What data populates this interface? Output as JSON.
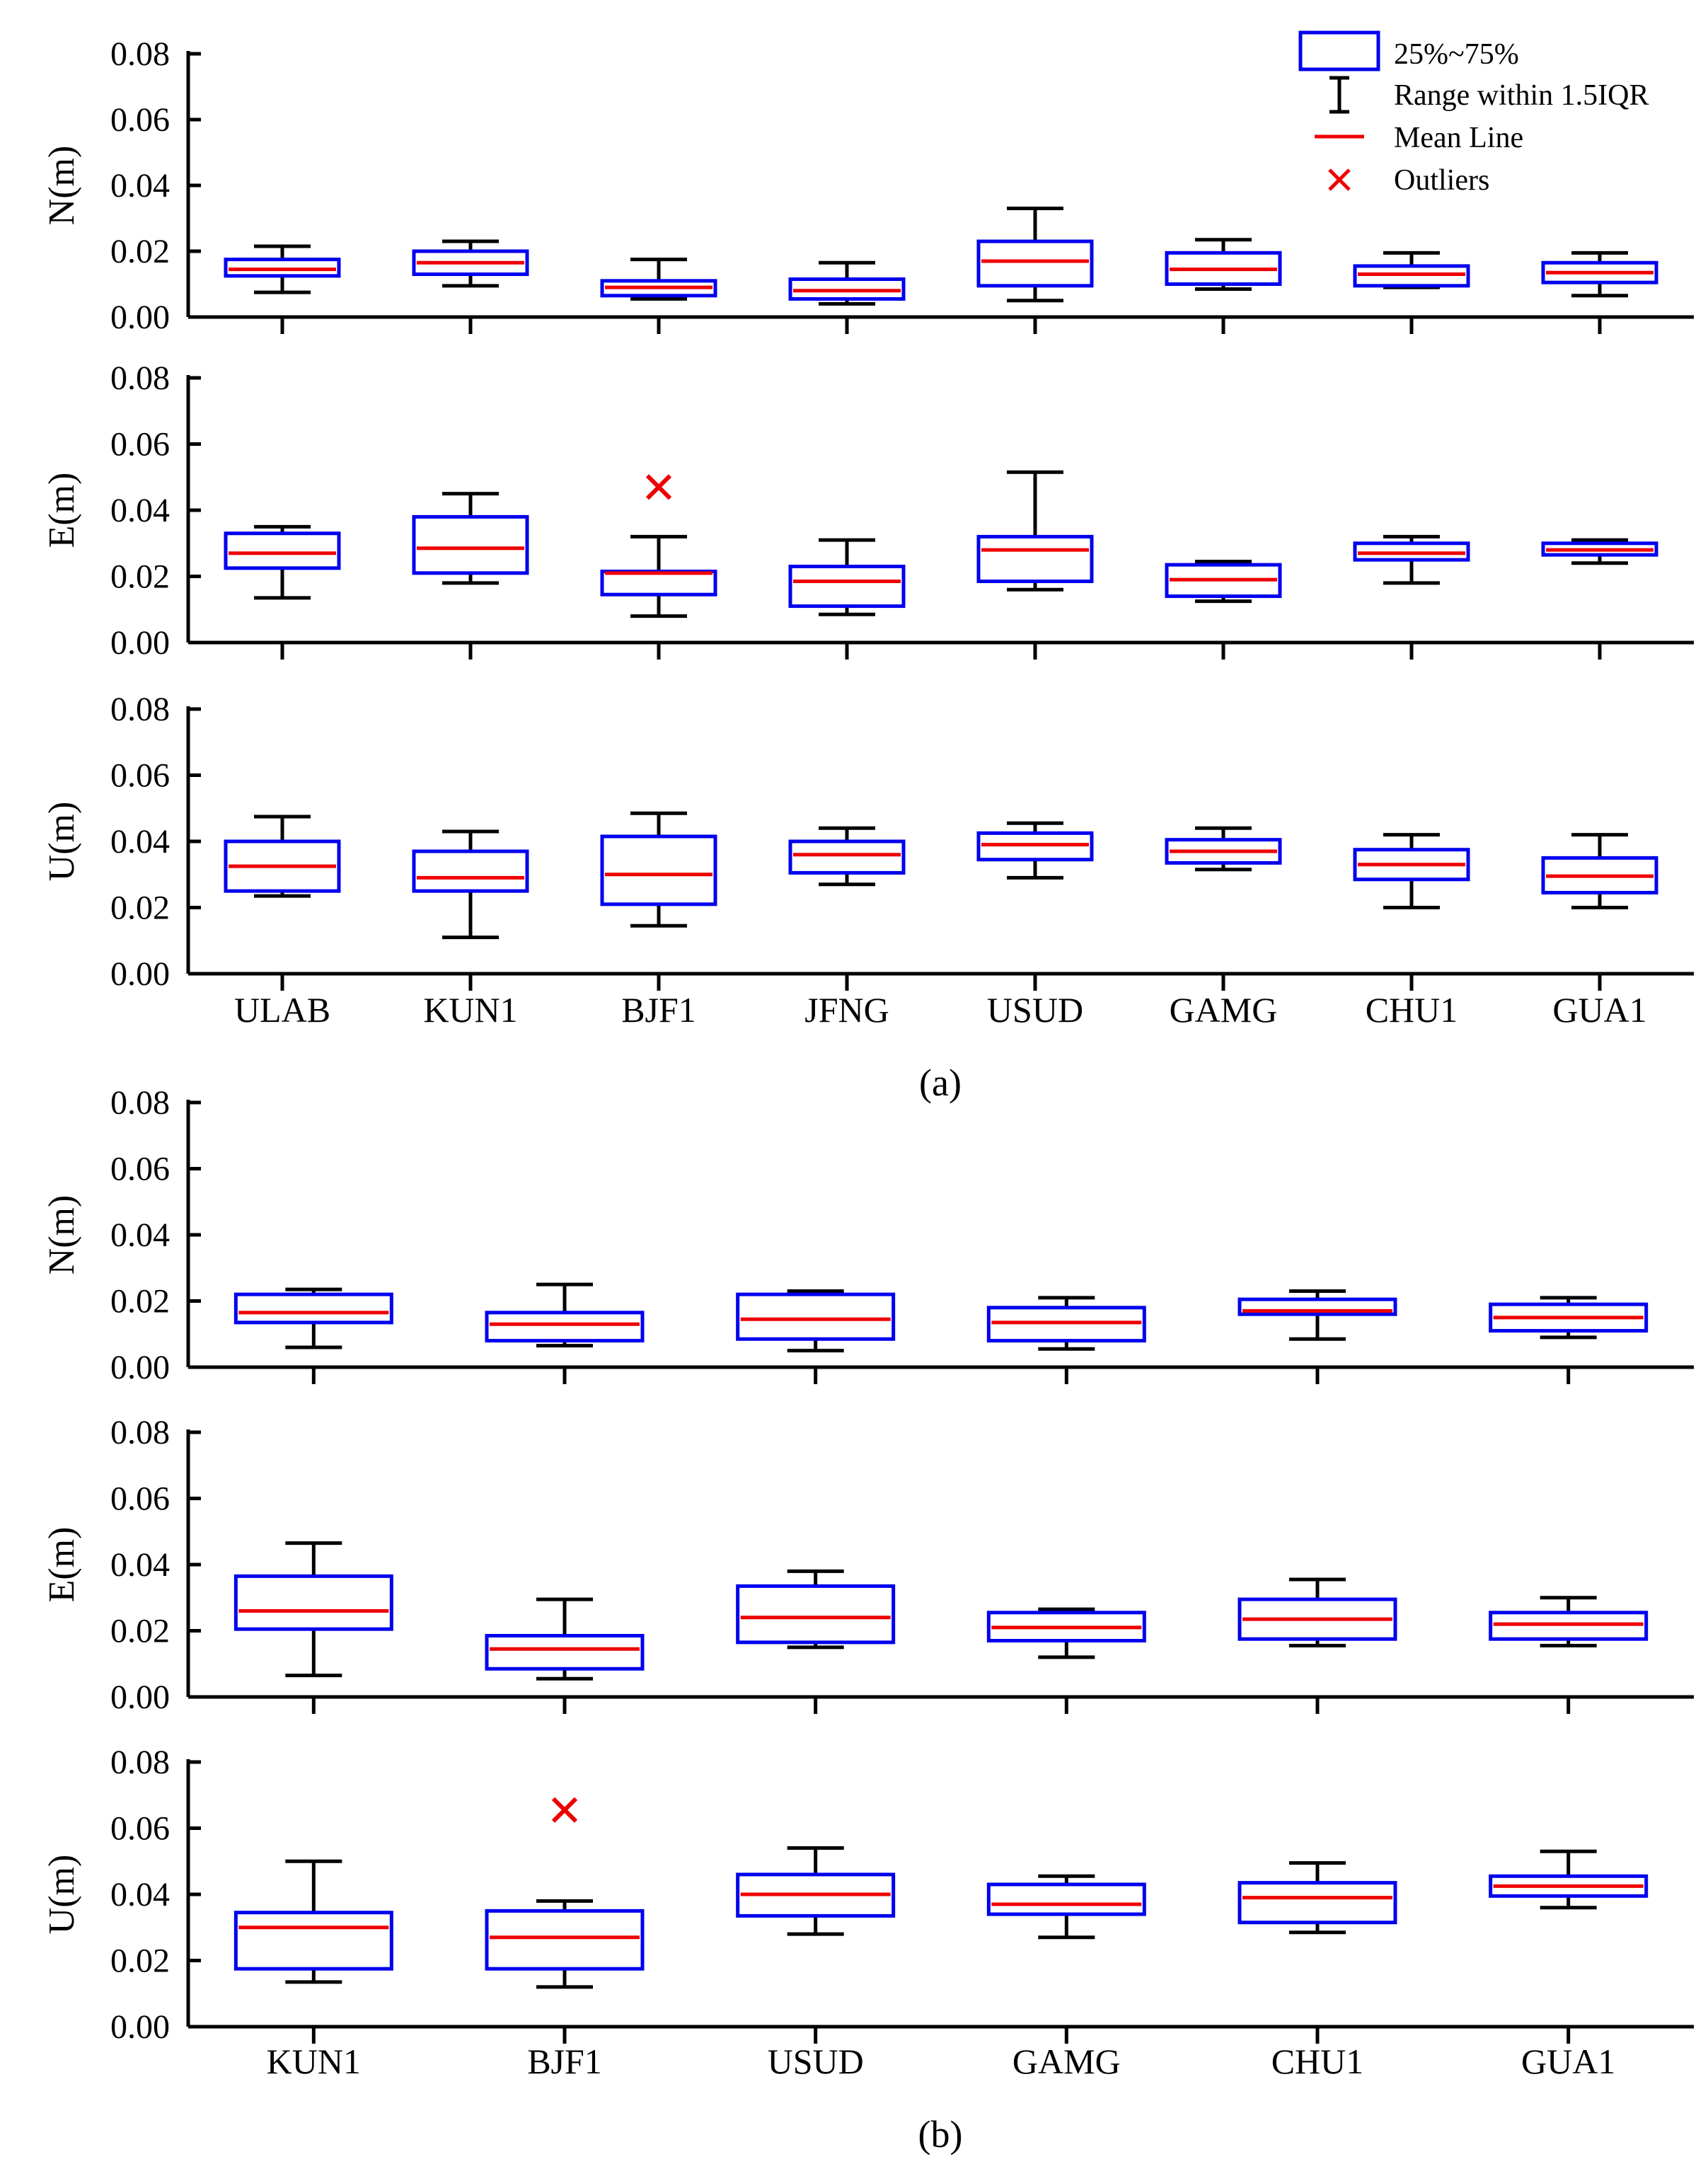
{
  "chart_data": [
    {
      "type": "boxplot",
      "group": "a",
      "caption": "(a)",
      "categories": [
        "ULAB",
        "KUN1",
        "BJF1",
        "JFNG",
        "USUD",
        "GAMG",
        "CHU1",
        "GUA1"
      ],
      "ylim": [
        0,
        0.08
      ],
      "yticks": [
        "0.00",
        "0.02",
        "0.04",
        "0.06",
        "0.08"
      ],
      "panels": [
        {
          "ylabel": "N(m)",
          "boxes": [
            {
              "q1": 0.0125,
              "q3": 0.0175,
              "mean": 0.0145,
              "whisker_low": 0.0075,
              "whisker_high": 0.0215
            },
            {
              "q1": 0.013,
              "q3": 0.02,
              "mean": 0.0165,
              "whisker_low": 0.0095,
              "whisker_high": 0.023
            },
            {
              "q1": 0.0065,
              "q3": 0.011,
              "mean": 0.009,
              "whisker_low": 0.0055,
              "whisker_high": 0.0175
            },
            {
              "q1": 0.0055,
              "q3": 0.0115,
              "mean": 0.008,
              "whisker_low": 0.004,
              "whisker_high": 0.0165
            },
            {
              "q1": 0.0095,
              "q3": 0.023,
              "mean": 0.017,
              "whisker_low": 0.005,
              "whisker_high": 0.033
            },
            {
              "q1": 0.01,
              "q3": 0.0195,
              "mean": 0.0145,
              "whisker_low": 0.0085,
              "whisker_high": 0.0235
            },
            {
              "q1": 0.0095,
              "q3": 0.0155,
              "mean": 0.013,
              "whisker_low": 0.009,
              "whisker_high": 0.0195
            },
            {
              "q1": 0.0105,
              "q3": 0.0165,
              "mean": 0.0135,
              "whisker_low": 0.0065,
              "whisker_high": 0.0195
            }
          ],
          "outliers": []
        },
        {
          "ylabel": "E(m)",
          "boxes": [
            {
              "q1": 0.0225,
              "q3": 0.033,
              "mean": 0.027,
              "whisker_low": 0.0135,
              "whisker_high": 0.035
            },
            {
              "q1": 0.021,
              "q3": 0.038,
              "mean": 0.0285,
              "whisker_low": 0.018,
              "whisker_high": 0.045
            },
            {
              "q1": 0.0145,
              "q3": 0.0215,
              "mean": 0.021,
              "whisker_low": 0.008,
              "whisker_high": 0.032
            },
            {
              "q1": 0.011,
              "q3": 0.023,
              "mean": 0.0185,
              "whisker_low": 0.0085,
              "whisker_high": 0.031
            },
            {
              "q1": 0.0185,
              "q3": 0.032,
              "mean": 0.028,
              "whisker_low": 0.016,
              "whisker_high": 0.0515
            },
            {
              "q1": 0.014,
              "q3": 0.0235,
              "mean": 0.019,
              "whisker_low": 0.0125,
              "whisker_high": 0.0245
            },
            {
              "q1": 0.025,
              "q3": 0.03,
              "mean": 0.027,
              "whisker_low": 0.018,
              "whisker_high": 0.032
            },
            {
              "q1": 0.0265,
              "q3": 0.03,
              "mean": 0.028,
              "whisker_low": 0.024,
              "whisker_high": 0.031
            }
          ],
          "outliers": [
            {
              "category": "BJF1",
              "value": 0.047
            }
          ]
        },
        {
          "ylabel": "U(m)",
          "boxes": [
            {
              "q1": 0.025,
              "q3": 0.04,
              "mean": 0.0325,
              "whisker_low": 0.0235,
              "whisker_high": 0.0475
            },
            {
              "q1": 0.025,
              "q3": 0.037,
              "mean": 0.029,
              "whisker_low": 0.011,
              "whisker_high": 0.043
            },
            {
              "q1": 0.021,
              "q3": 0.0415,
              "mean": 0.03,
              "whisker_low": 0.0145,
              "whisker_high": 0.0485
            },
            {
              "q1": 0.0305,
              "q3": 0.04,
              "mean": 0.036,
              "whisker_low": 0.027,
              "whisker_high": 0.044
            },
            {
              "q1": 0.0345,
              "q3": 0.0425,
              "mean": 0.039,
              "whisker_low": 0.029,
              "whisker_high": 0.0455
            },
            {
              "q1": 0.0335,
              "q3": 0.0405,
              "mean": 0.037,
              "whisker_low": 0.0315,
              "whisker_high": 0.044
            },
            {
              "q1": 0.0285,
              "q3": 0.0375,
              "mean": 0.033,
              "whisker_low": 0.02,
              "whisker_high": 0.042
            },
            {
              "q1": 0.0245,
              "q3": 0.035,
              "mean": 0.0295,
              "whisker_low": 0.02,
              "whisker_high": 0.042
            }
          ],
          "outliers": []
        }
      ]
    },
    {
      "type": "boxplot",
      "group": "b",
      "caption": "(b)",
      "categories": [
        "KUN1",
        "BJF1",
        "USUD",
        "GAMG",
        "CHU1",
        "GUA1"
      ],
      "ylim": [
        0,
        0.08
      ],
      "yticks": [
        "0.00",
        "0.02",
        "0.04",
        "0.06",
        "0.08"
      ],
      "panels": [
        {
          "ylabel": "N(m)",
          "boxes": [
            {
              "q1": 0.0135,
              "q3": 0.022,
              "mean": 0.0165,
              "whisker_low": 0.006,
              "whisker_high": 0.0235
            },
            {
              "q1": 0.008,
              "q3": 0.0165,
              "mean": 0.013,
              "whisker_low": 0.0065,
              "whisker_high": 0.025
            },
            {
              "q1": 0.0085,
              "q3": 0.022,
              "mean": 0.0145,
              "whisker_low": 0.005,
              "whisker_high": 0.023
            },
            {
              "q1": 0.008,
              "q3": 0.018,
              "mean": 0.0135,
              "whisker_low": 0.0055,
              "whisker_high": 0.021
            },
            {
              "q1": 0.016,
              "q3": 0.0205,
              "mean": 0.017,
              "whisker_low": 0.0085,
              "whisker_high": 0.023
            },
            {
              "q1": 0.011,
              "q3": 0.019,
              "mean": 0.015,
              "whisker_low": 0.009,
              "whisker_high": 0.021
            }
          ],
          "outliers": []
        },
        {
          "ylabel": "E(m)",
          "boxes": [
            {
              "q1": 0.0205,
              "q3": 0.0365,
              "mean": 0.026,
              "whisker_low": 0.0065,
              "whisker_high": 0.0465
            },
            {
              "q1": 0.0085,
              "q3": 0.0185,
              "mean": 0.0145,
              "whisker_low": 0.0055,
              "whisker_high": 0.0295
            },
            {
              "q1": 0.0165,
              "q3": 0.0335,
              "mean": 0.024,
              "whisker_low": 0.015,
              "whisker_high": 0.038
            },
            {
              "q1": 0.017,
              "q3": 0.0255,
              "mean": 0.021,
              "whisker_low": 0.012,
              "whisker_high": 0.0265
            },
            {
              "q1": 0.0175,
              "q3": 0.0295,
              "mean": 0.0235,
              "whisker_low": 0.0155,
              "whisker_high": 0.0355
            },
            {
              "q1": 0.0175,
              "q3": 0.0255,
              "mean": 0.022,
              "whisker_low": 0.0155,
              "whisker_high": 0.03
            }
          ],
          "outliers": []
        },
        {
          "ylabel": "U(m)",
          "boxes": [
            {
              "q1": 0.0175,
              "q3": 0.0345,
              "mean": 0.03,
              "whisker_low": 0.0135,
              "whisker_high": 0.05
            },
            {
              "q1": 0.0175,
              "q3": 0.035,
              "mean": 0.027,
              "whisker_low": 0.012,
              "whisker_high": 0.038
            },
            {
              "q1": 0.0335,
              "q3": 0.046,
              "mean": 0.04,
              "whisker_low": 0.028,
              "whisker_high": 0.054
            },
            {
              "q1": 0.034,
              "q3": 0.043,
              "mean": 0.037,
              "whisker_low": 0.027,
              "whisker_high": 0.0455
            },
            {
              "q1": 0.0315,
              "q3": 0.0435,
              "mean": 0.039,
              "whisker_low": 0.0285,
              "whisker_high": 0.0495
            },
            {
              "q1": 0.0395,
              "q3": 0.0455,
              "mean": 0.0425,
              "whisker_low": 0.036,
              "whisker_high": 0.053
            }
          ],
          "outliers": [
            {
              "category": "BJF1",
              "value": 0.0655
            }
          ]
        }
      ]
    }
  ],
  "legend": {
    "position": "top-right",
    "items": [
      {
        "label": "25%~75%",
        "kind": "box"
      },
      {
        "label": "Range within 1.5IQR",
        "kind": "whisker"
      },
      {
        "label": "Mean Line",
        "kind": "mean"
      },
      {
        "label": "Outliers",
        "kind": "outlier"
      }
    ]
  },
  "colors": {
    "box": "#0000ee",
    "mean": "#ee0000",
    "whisker": "#000000",
    "outlier": "#ee0000",
    "axis": "#000000"
  }
}
